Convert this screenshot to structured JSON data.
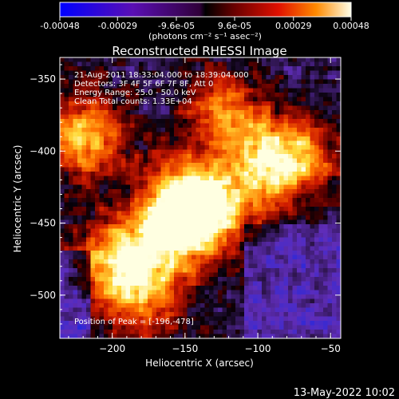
{
  "colorbar": {
    "ticks": [
      "-0.00048",
      "-0.00029",
      "-9.6e-05",
      "9.6e-05",
      "0.00029",
      "0.00048"
    ],
    "tick_values": [
      -0.00048,
      -0.00029,
      -9.6e-05,
      9.6e-05,
      0.00029,
      0.00048
    ],
    "range": [
      -0.00048,
      0.00048
    ],
    "unit_label": "(photons cm⁻² s⁻¹ asec⁻²)"
  },
  "chart_data": {
    "type": "heatmap",
    "title": "Reconstructed RHESSI Image",
    "xlabel": "Heliocentric X (arcsec)",
    "ylabel": "Heliocentric Y (arcsec)",
    "xlim": [
      -236,
      -43
    ],
    "ylim": [
      -530,
      -335
    ],
    "xticks": [
      -200,
      -150,
      -100,
      -50
    ],
    "yticks": [
      -350,
      -400,
      -450,
      -500
    ],
    "colormap": "rhessi-hot",
    "grid": false,
    "peak": {
      "x": -196,
      "y": -478
    },
    "info_lines": [
      "21-Aug-2011 18:33:04.000 to 18:39:04.000",
      "Detectors: 3F 4F 5F 6F 7F 8F, Att 0",
      "Energy Range: 25.0 - 50.0 keV",
      "Clean     Total counts: 1.33E+04"
    ],
    "peak_label": "Position of Peak = [-196,-478]",
    "hot_spots": [
      {
        "x": -149,
        "y": -434,
        "value": 1.0
      },
      {
        "x": -197,
        "y": -478,
        "value": 0.9
      },
      {
        "x": -220,
        "y": -390,
        "value": 0.85
      },
      {
        "x": -163,
        "y": -460,
        "value": 0.75
      },
      {
        "x": -122,
        "y": -375,
        "value": 0.7
      },
      {
        "x": -95,
        "y": -410,
        "value": 0.75
      },
      {
        "x": -70,
        "y": -405,
        "value": 0.6
      },
      {
        "x": -130,
        "y": -445,
        "value": 0.65
      },
      {
        "x": -175,
        "y": -505,
        "value": 0.55
      }
    ]
  },
  "footer": {
    "date": "13-May-2022 10:02"
  }
}
